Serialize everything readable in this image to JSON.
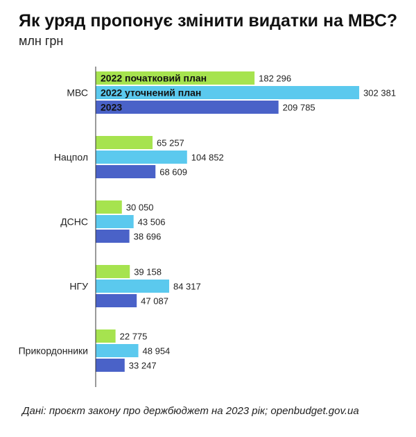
{
  "header": {
    "title": "Як уряд пропонує змінити видатки на МВС?",
    "subtitle": "млн грн"
  },
  "footer": {
    "source": "Дані: проєкт закону про держбюджет на 2023 рік; openbudget.gov.ua"
  },
  "colors": {
    "series_2022_initial": "#a6e34f",
    "series_2022_revised": "#5bc9ee",
    "series_2023": "#4a62c8"
  },
  "chart_data": {
    "type": "bar",
    "orientation": "horizontal",
    "title": "Як уряд пропонує змінити видатки на МВС?",
    "subtitle": "млн грн",
    "categories": [
      "МВС",
      "Нацпол",
      "ДСНС",
      "НГУ",
      "Прикордонники"
    ],
    "series": [
      {
        "name": "2022 початковий план",
        "values": [
          182296,
          65257,
          30050,
          39158,
          22775
        ]
      },
      {
        "name": "2022 уточнений план",
        "values": [
          302381,
          104852,
          43506,
          84317,
          48954
        ]
      },
      {
        "name": "2023",
        "values": [
          209785,
          68609,
          38696,
          47087,
          33247
        ]
      }
    ],
    "value_labels": [
      [
        "182 296",
        "65 257",
        "30 050",
        "39 158",
        "22 775"
      ],
      [
        "302 381",
        "104 852",
        "43 506",
        "84 317",
        "48 954"
      ],
      [
        "209 785",
        "68 609",
        "38 696",
        "47 087",
        "33 247"
      ]
    ],
    "legend": "inside-first-group-bars",
    "grid": false
  }
}
